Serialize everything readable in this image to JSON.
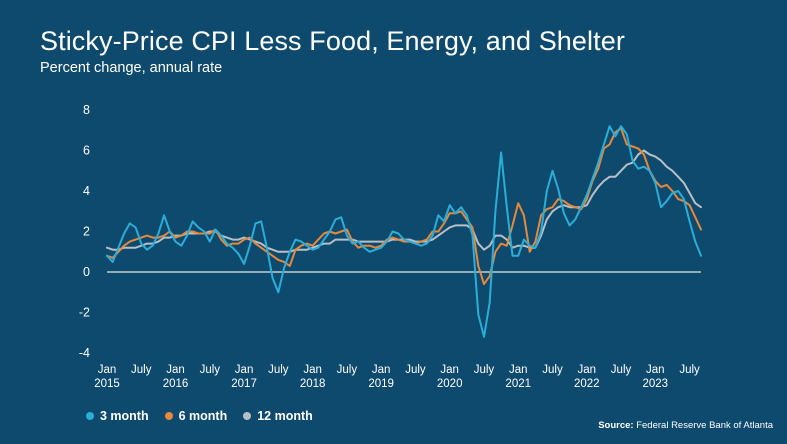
{
  "title": "Sticky-Price CPI Less Food, Energy, and Shelter",
  "subtitle": "Percent change, annual rate",
  "source_label": "Source:",
  "source_text": "Federal Reserve Bank of Atlanta",
  "colors": {
    "background": "#0e4a6e",
    "three_month": "#2aaed8",
    "six_month": "#e8883a",
    "twelve_month": "#b8bfc6",
    "zero_line": "#e6e6e6"
  },
  "chart_data": {
    "type": "line",
    "title": "Sticky-Price CPI Less Food, Energy, and Shelter",
    "subtitle": "Percent change, annual rate",
    "ylim": [
      -4,
      8
    ],
    "yticks": [
      -4,
      -2,
      0,
      2,
      4,
      6,
      8
    ],
    "x_start": "2015-01",
    "x_end": "2023-07",
    "x_ticks": [
      {
        "month": "Jan",
        "year": "2015"
      },
      {
        "month": "July",
        "year": ""
      },
      {
        "month": "Jan",
        "year": "2016"
      },
      {
        "month": "July",
        "year": ""
      },
      {
        "month": "Jan",
        "year": "2017"
      },
      {
        "month": "July",
        "year": ""
      },
      {
        "month": "Jan",
        "year": "2018"
      },
      {
        "month": "July",
        "year": ""
      },
      {
        "month": "Jan",
        "year": "2019"
      },
      {
        "month": "July",
        "year": ""
      },
      {
        "month": "Jan",
        "year": "2020"
      },
      {
        "month": "July",
        "year": ""
      },
      {
        "month": "Jan",
        "year": "2021"
      },
      {
        "month": "July",
        "year": ""
      },
      {
        "month": "Jan",
        "year": "2022"
      },
      {
        "month": "July",
        "year": ""
      },
      {
        "month": "Jan",
        "year": "2023"
      },
      {
        "month": "July",
        "year": ""
      }
    ],
    "legend_position": "bottom-left",
    "grid": false,
    "series": [
      {
        "name": "3 month",
        "color": "#2aaed8",
        "values": [
          0.8,
          0.5,
          1.2,
          1.9,
          2.4,
          2.2,
          1.4,
          1.1,
          1.3,
          1.9,
          2.8,
          2.0,
          1.5,
          1.3,
          1.8,
          2.5,
          2.2,
          2.0,
          1.5,
          2.1,
          1.8,
          1.4,
          1.2,
          0.9,
          0.4,
          1.3,
          2.4,
          2.5,
          1.2,
          -0.3,
          -1.0,
          0.2,
          1.0,
          1.6,
          1.5,
          1.3,
          1.1,
          1.2,
          1.6,
          2.0,
          2.6,
          2.7,
          1.8,
          1.4,
          1.5,
          1.2,
          1.0,
          1.1,
          1.2,
          1.5,
          2.0,
          1.9,
          1.6,
          1.5,
          1.4,
          1.3,
          1.4,
          1.8,
          2.8,
          2.5,
          3.3,
          2.9,
          3.2,
          2.8,
          1.8,
          -2.1,
          -3.2,
          -1.5,
          3.0,
          5.9,
          3.2,
          0.8,
          0.8,
          1.6,
          1.3,
          1.2,
          2.0,
          4.0,
          5.0,
          4.1,
          2.9,
          2.3,
          2.6,
          3.2,
          3.8,
          4.6,
          5.4,
          6.3,
          7.2,
          6.7,
          7.2,
          6.8,
          5.5,
          5.1,
          5.2,
          5.0,
          4.4,
          3.2,
          3.5,
          3.9,
          4.0,
          3.6,
          2.5,
          1.5,
          0.8
        ]
      },
      {
        "name": "6 month",
        "color": "#e8883a",
        "values": [
          0.8,
          0.7,
          1.0,
          1.3,
          1.5,
          1.6,
          1.7,
          1.8,
          1.7,
          1.7,
          1.8,
          2.0,
          1.7,
          1.8,
          2.0,
          2.0,
          1.9,
          1.9,
          1.9,
          2.1,
          1.6,
          1.3,
          1.4,
          1.4,
          1.6,
          1.7,
          1.4,
          1.2,
          1.0,
          0.8,
          0.6,
          0.5,
          0.3,
          1.1,
          1.3,
          1.4,
          1.3,
          1.6,
          1.9,
          2.0,
          1.9,
          2.0,
          2.1,
          1.5,
          1.2,
          1.3,
          1.3,
          1.2,
          1.3,
          1.6,
          1.7,
          1.6,
          1.5,
          1.5,
          1.4,
          1.5,
          1.6,
          2.0,
          2.0,
          2.4,
          2.9,
          2.9,
          3.0,
          2.6,
          2.2,
          0.3,
          -0.6,
          -0.2,
          1.0,
          1.4,
          1.3,
          2.3,
          3.4,
          2.8,
          1.0,
          1.5,
          2.8,
          3.1,
          3.2,
          3.6,
          3.5,
          3.3,
          3.2,
          3.1,
          3.6,
          4.5,
          5.1,
          6.1,
          6.3,
          6.9,
          7.1,
          6.3,
          6.2,
          6.1,
          5.8,
          5.0,
          4.5,
          4.2,
          4.3,
          4.0,
          3.6,
          3.5,
          3.3,
          2.7,
          2.1
        ]
      },
      {
        "name": "12 month",
        "color": "#b8bfc6",
        "values": [
          1.2,
          1.1,
          1.1,
          1.2,
          1.2,
          1.2,
          1.3,
          1.4,
          1.4,
          1.5,
          1.7,
          1.7,
          1.8,
          1.8,
          1.9,
          1.9,
          1.9,
          1.9,
          2.0,
          2.0,
          1.8,
          1.7,
          1.6,
          1.6,
          1.7,
          1.6,
          1.5,
          1.4,
          1.2,
          1.1,
          1.0,
          1.0,
          1.0,
          1.1,
          1.1,
          1.1,
          1.2,
          1.3,
          1.4,
          1.4,
          1.6,
          1.6,
          1.6,
          1.6,
          1.5,
          1.5,
          1.5,
          1.5,
          1.5,
          1.5,
          1.6,
          1.6,
          1.6,
          1.6,
          1.5,
          1.5,
          1.5,
          1.6,
          1.8,
          2.0,
          2.2,
          2.3,
          2.3,
          2.3,
          2.1,
          1.4,
          1.1,
          1.3,
          1.8,
          1.8,
          1.6,
          1.2,
          1.3,
          1.3,
          1.2,
          1.2,
          1.8,
          2.6,
          3.0,
          3.2,
          3.3,
          3.2,
          3.2,
          3.2,
          3.3,
          3.8,
          4.2,
          4.5,
          4.7,
          4.7,
          5.0,
          5.3,
          5.4,
          5.8,
          6.0,
          5.8,
          5.7,
          5.5,
          5.2,
          5.0,
          4.7,
          4.4,
          3.9,
          3.4,
          3.2
        ]
      }
    ]
  }
}
